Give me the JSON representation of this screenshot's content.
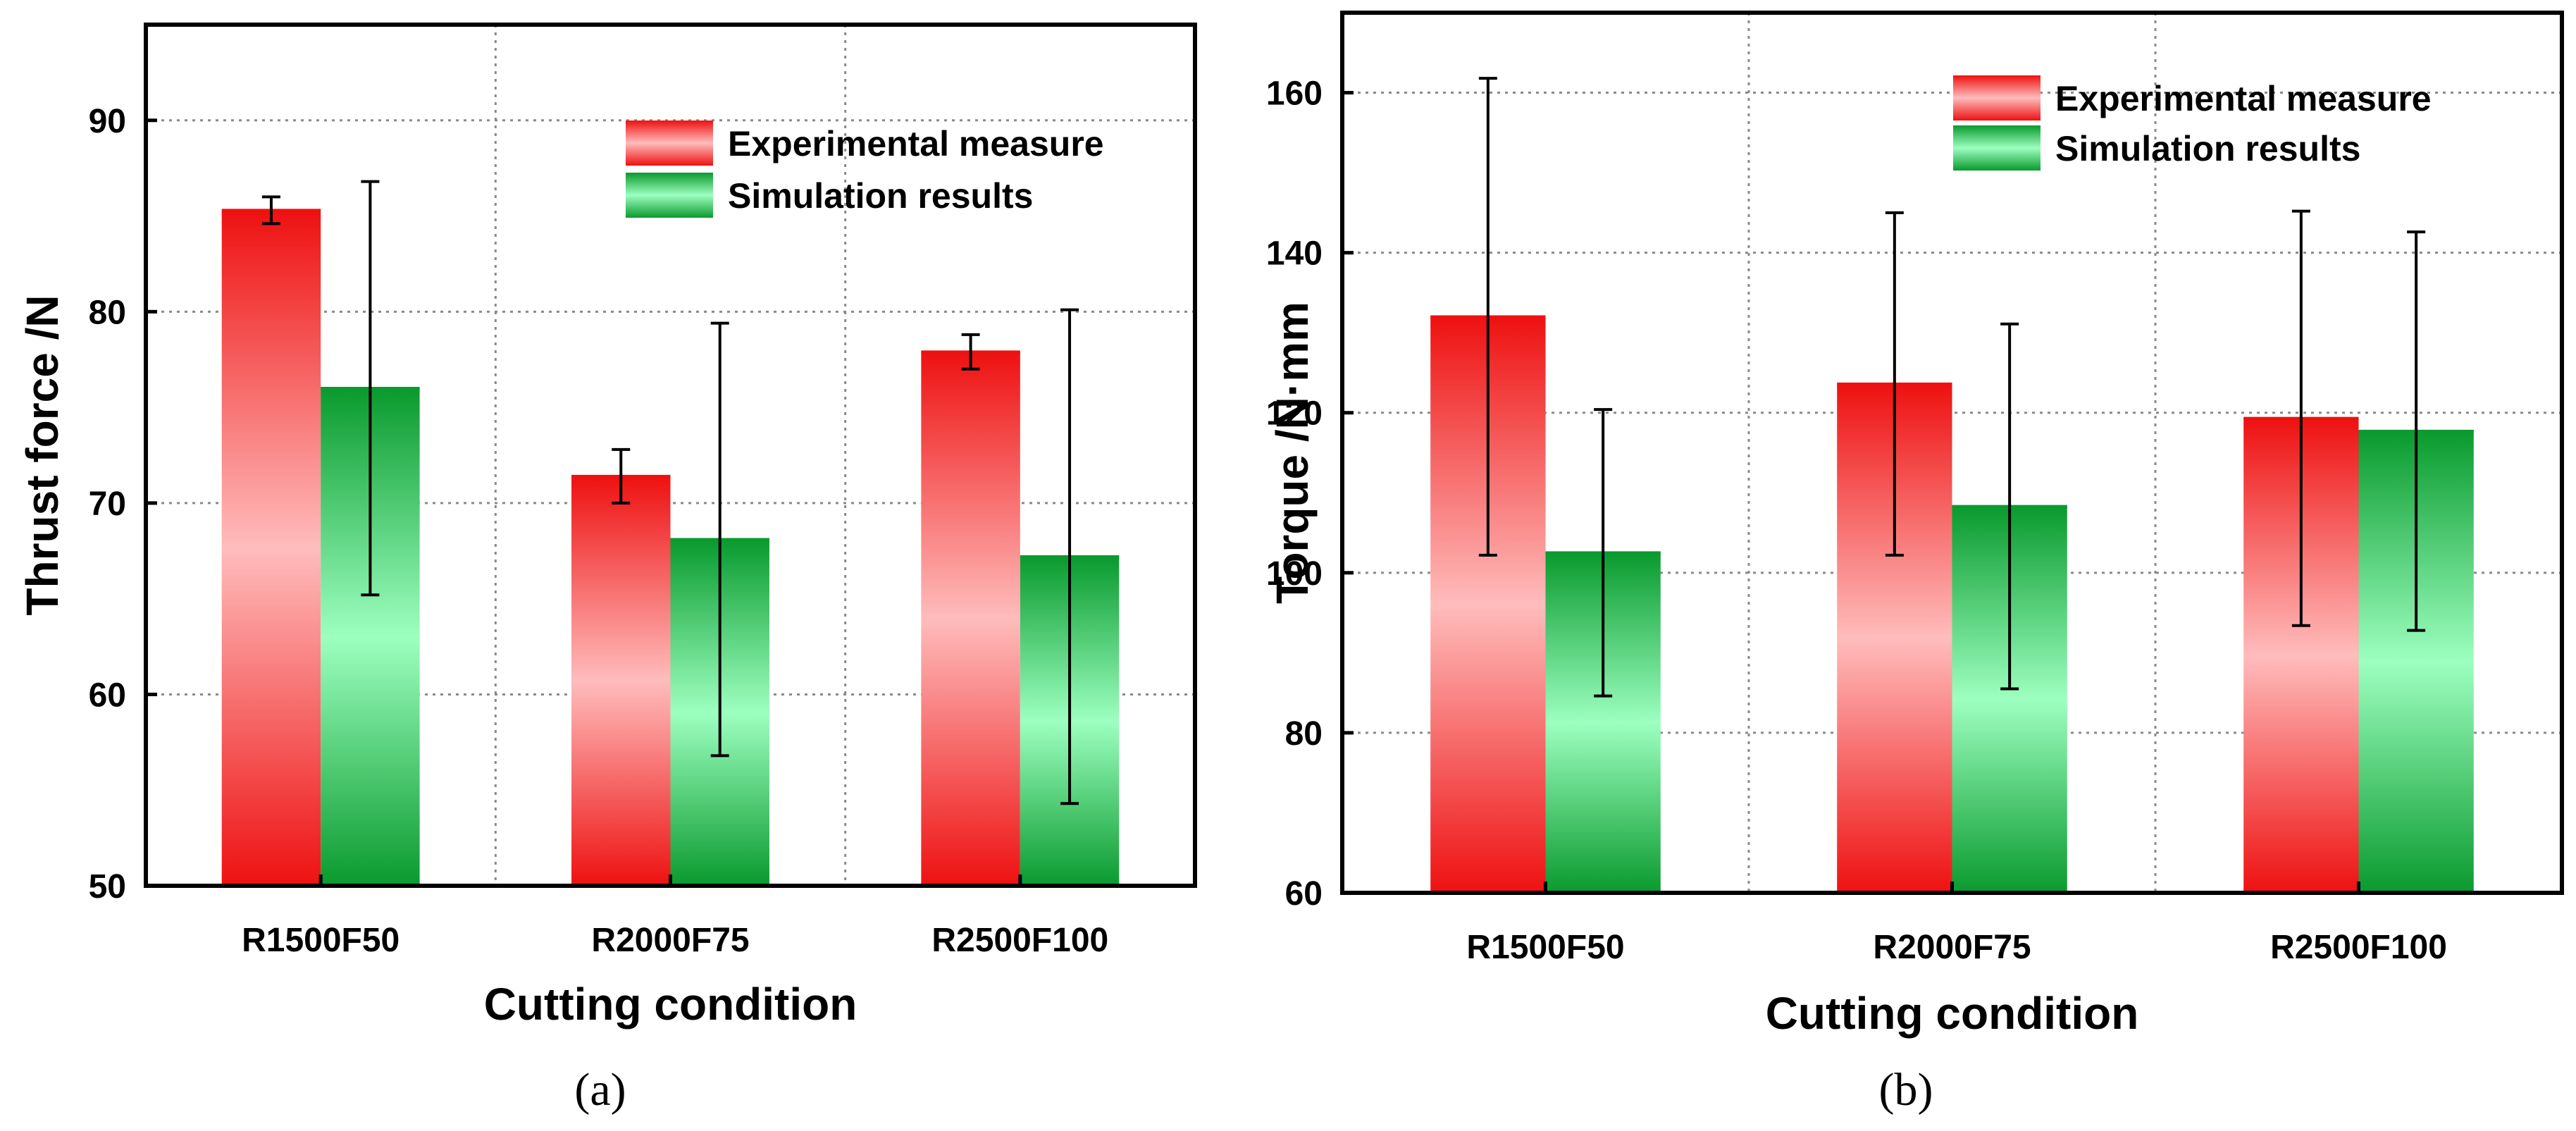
{
  "chart_data": [
    {
      "type": "bar",
      "panel_label": "(a)",
      "title": "",
      "xlabel": "Cutting condition",
      "ylabel": "Thrust force  /N",
      "ylim": [
        50,
        95
      ],
      "yticks": [
        50,
        60,
        70,
        80,
        90
      ],
      "grid": true,
      "legend": "top-right",
      "categories": [
        "R1500F50",
        "R2000F75",
        "R2500F100"
      ],
      "series": [
        {
          "name": "Experimental measure",
          "color_top": "#ee1111",
          "color_mid": "#ffbcbc",
          "color_bottom": "#ee1111",
          "values": [
            85.3,
            71.4,
            77.9
          ],
          "errors": [
            0.7,
            1.4,
            0.9
          ]
        },
        {
          "name": "Simulation results",
          "color_top": "#0a9a2e",
          "color_mid": "#9dffc0",
          "color_bottom": "#0a9a2e",
          "values": [
            76.0,
            68.1,
            67.2
          ],
          "errors": [
            10.8,
            11.3,
            12.9
          ]
        }
      ]
    },
    {
      "type": "bar",
      "panel_label": "(b)",
      "title": "",
      "xlabel": "Cutting condition",
      "ylabel": "Torque  /N·mm",
      "ylim": [
        60,
        170
      ],
      "yticks": [
        60,
        80,
        100,
        120,
        140,
        160
      ],
      "grid": true,
      "legend": "top-right",
      "categories": [
        "R1500F50",
        "R2000F75",
        "R2500F100"
      ],
      "series": [
        {
          "name": "Experimental measure",
          "color_top": "#ee1111",
          "color_mid": "#ffbcbc",
          "color_bottom": "#ee1111",
          "values": [
            132.0,
            123.6,
            119.3
          ],
          "errors": [
            29.8,
            21.4,
            25.9
          ]
        },
        {
          "name": "Simulation results",
          "color_top": "#0a9a2e",
          "color_mid": "#9dffc0",
          "color_bottom": "#0a9a2e",
          "values": [
            102.5,
            108.3,
            117.7
          ],
          "errors": [
            17.9,
            22.8,
            24.9
          ]
        }
      ]
    }
  ]
}
